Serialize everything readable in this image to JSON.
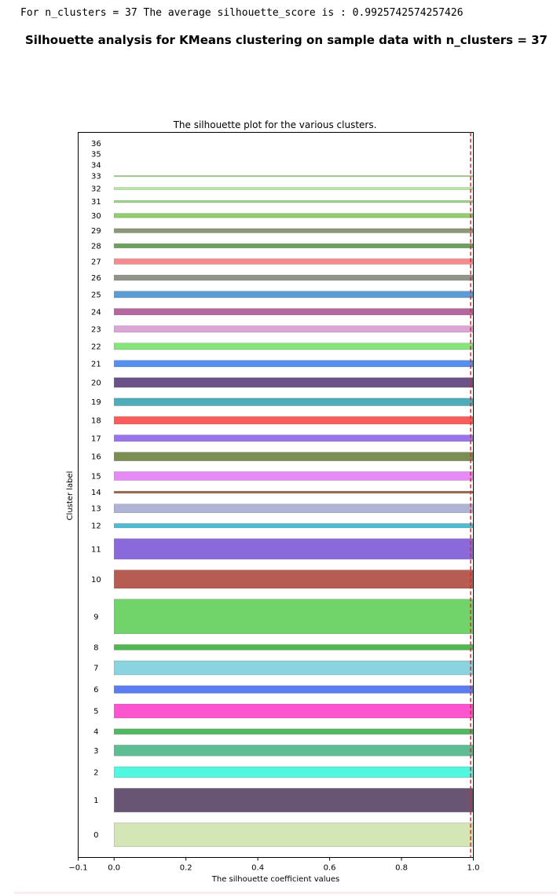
{
  "console_output": "For n_clusters = 37 The average silhouette_score is : 0.9925742574257426",
  "figure_title": "Silhouette analysis for KMeans clustering on sample data with n_clusters = 37",
  "chart_data": {
    "type": "bar",
    "title": "The silhouette plot for the various clusters.",
    "xlabel": "The silhouette coefficient values",
    "ylabel": "Cluster label",
    "xlim": [
      -0.1,
      1.0
    ],
    "xticks": [
      -0.1,
      0.0,
      0.2,
      0.4,
      0.6,
      0.8,
      1.0
    ],
    "xtick_labels": [
      "−0.1",
      "0.0",
      "0.2",
      "0.4",
      "0.6",
      "0.8",
      "1.0"
    ],
    "average_silhouette_score": 0.9925742574257426,
    "average_line_color": "#d62728",
    "grid": false,
    "clusters": [
      {
        "label": "0",
        "sizes": 22,
        "value": 1.0,
        "color": "#d4e6b5"
      },
      {
        "label": "1",
        "sizes": 22,
        "value": 1.0,
        "color": "#675573"
      },
      {
        "label": "2",
        "sizes": 10,
        "value": 1.0,
        "color": "#4ff8de"
      },
      {
        "label": "3",
        "sizes": 10,
        "value": 1.0,
        "color": "#5fbd93"
      },
      {
        "label": "4",
        "sizes": 5,
        "value": 1.0,
        "color": "#50b860"
      },
      {
        "label": "5",
        "sizes": 13,
        "value": 1.0,
        "color": "#fb55cf"
      },
      {
        "label": "6",
        "sizes": 7,
        "value": 1.0,
        "color": "#5a7ef2"
      },
      {
        "label": "7",
        "sizes": 13,
        "value": 1.0,
        "color": "#8ad4df"
      },
      {
        "label": "8",
        "sizes": 5,
        "value": 1.0,
        "color": "#50b850"
      },
      {
        "label": "9",
        "sizes": 32,
        "value": 1.0,
        "color": "#71d46b"
      },
      {
        "label": "10",
        "sizes": 17,
        "value": 1.0,
        "color": "#b75c53"
      },
      {
        "label": "11",
        "sizes": 19,
        "value": 1.0,
        "color": "#8a6ada"
      },
      {
        "label": "12",
        "sizes": 4,
        "value": 1.0,
        "color": "#4ebcd2"
      },
      {
        "label": "13",
        "sizes": 8,
        "value": 1.0,
        "color": "#b0b4d4"
      },
      {
        "label": "14",
        "sizes": 2,
        "value": 1.0,
        "color": "#9a6a4a"
      },
      {
        "label": "15",
        "sizes": 8,
        "value": 1.0,
        "color": "#e68af5"
      },
      {
        "label": "16",
        "sizes": 8,
        "value": 1.0,
        "color": "#7b8f55"
      },
      {
        "label": "17",
        "sizes": 6,
        "value": 1.0,
        "color": "#9a74ea"
      },
      {
        "label": "18",
        "sizes": 7,
        "value": 1.0,
        "color": "#fb5c5c"
      },
      {
        "label": "19",
        "sizes": 7,
        "value": 1.0,
        "color": "#4daeb9"
      },
      {
        "label": "20",
        "sizes": 9,
        "value": 1.0,
        "color": "#6a5187"
      },
      {
        "label": "21",
        "sizes": 6,
        "value": 1.0,
        "color": "#558ff0"
      },
      {
        "label": "22",
        "sizes": 6,
        "value": 1.0,
        "color": "#85e57b"
      },
      {
        "label": "23",
        "sizes": 6,
        "value": 1.0,
        "color": "#dba6d6"
      },
      {
        "label": "24",
        "sizes": 6,
        "value": 1.0,
        "color": "#b5679f"
      },
      {
        "label": "25",
        "sizes": 6,
        "value": 1.0,
        "color": "#5c9cd6"
      },
      {
        "label": "26",
        "sizes": 5,
        "value": 1.0,
        "color": "#919589"
      },
      {
        "label": "27",
        "sizes": 5,
        "value": 1.0,
        "color": "#f68a8c"
      },
      {
        "label": "28",
        "sizes": 4,
        "value": 1.0,
        "color": "#6ea05f"
      },
      {
        "label": "29",
        "sizes": 4,
        "value": 1.0,
        "color": "#8d9878"
      },
      {
        "label": "30",
        "sizes": 4,
        "value": 1.0,
        "color": "#92ce6e"
      },
      {
        "label": "31",
        "sizes": 2,
        "value": 1.0,
        "color": "#9ed68a"
      },
      {
        "label": "32",
        "sizes": 2,
        "value": 1.0,
        "color": "#b3ec99"
      },
      {
        "label": "33",
        "sizes": 1,
        "value": 1.0,
        "color": "#a6d68e"
      },
      {
        "label": "34",
        "sizes": 0,
        "value": 1.0,
        "color": "#ffffff"
      },
      {
        "label": "35",
        "sizes": 0,
        "value": 1.0,
        "color": "#ffffff"
      },
      {
        "label": "36",
        "sizes": 0,
        "value": 1.0,
        "color": "#ffffff"
      }
    ]
  }
}
